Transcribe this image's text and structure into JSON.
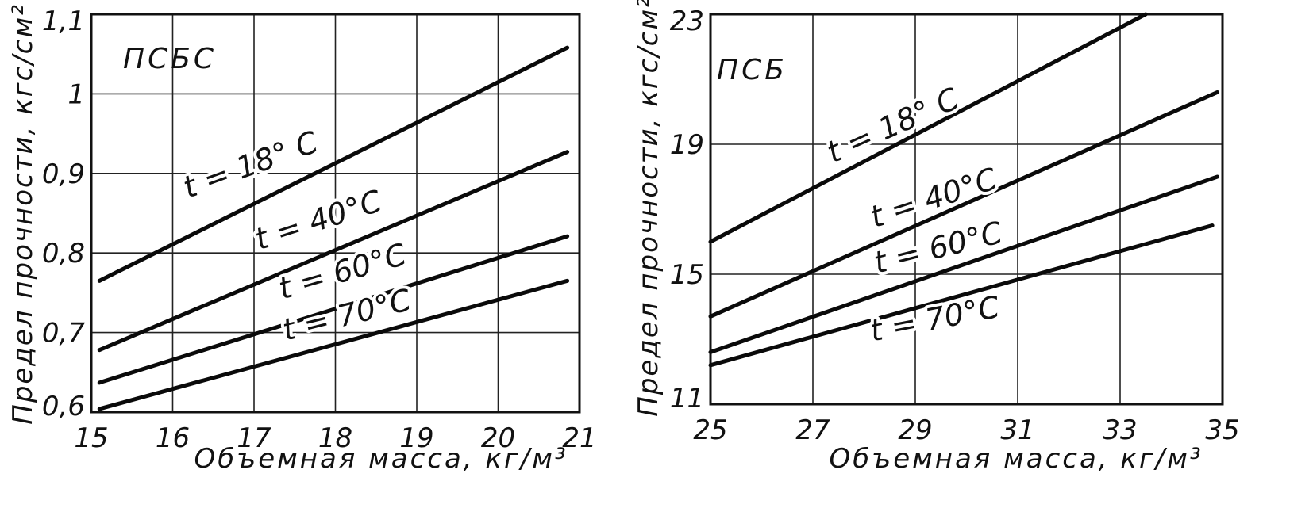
{
  "chart_data": [
    {
      "type": "line",
      "panel_label": "ПСБС",
      "xlabel": "Объемная масса, кг/м³",
      "ylabel": "Предел прочности, кгс/см²",
      "xlim": [
        15,
        21
      ],
      "ylim": [
        0.6,
        1.1
      ],
      "xticks": [
        15,
        16,
        17,
        18,
        19,
        20,
        21
      ],
      "xtick_labels": [
        "15",
        "16",
        "17",
        "18",
        "19",
        "20",
        "21"
      ],
      "yticks": [
        0.6,
        0.7,
        0.8,
        0.9,
        1.0,
        1.1
      ],
      "ytick_labels": [
        "0,6",
        "0,7",
        "0,8",
        "0,9",
        "1",
        "1,1"
      ],
      "grid": true,
      "series": [
        {
          "name": "t = 18° C",
          "x": [
            15.1,
            20.85
          ],
          "y": [
            0.765,
            1.058
          ]
        },
        {
          "name": "t = 40°C",
          "x": [
            15.1,
            20.85
          ],
          "y": [
            0.678,
            0.927
          ]
        },
        {
          "name": "t = 60°C",
          "x": [
            15.1,
            20.85
          ],
          "y": [
            0.637,
            0.821
          ]
        },
        {
          "name": "t = 70°C",
          "x": [
            15.1,
            20.85
          ],
          "y": [
            0.604,
            0.765
          ]
        }
      ]
    },
    {
      "type": "line",
      "panel_label": "ПСБ",
      "xlabel": "Объемная масса, кг/м³",
      "ylabel": "Предел прочности, кгс/см²",
      "xlim": [
        25,
        35
      ],
      "ylim": [
        11,
        23
      ],
      "xticks": [
        25,
        27,
        29,
        31,
        33,
        35
      ],
      "xtick_labels": [
        "25",
        "27",
        "29",
        "31",
        "33",
        "35"
      ],
      "yticks": [
        11,
        15,
        19,
        23
      ],
      "ytick_labels": [
        "11",
        "15",
        "19",
        "23"
      ],
      "grid": true,
      "series": [
        {
          "name": "t = 18° C",
          "x": [
            25.0,
            33.5
          ],
          "y": [
            16.0,
            23.0
          ]
        },
        {
          "name": "t = 40°C",
          "x": [
            25.0,
            34.9
          ],
          "y": [
            13.7,
            20.6
          ]
        },
        {
          "name": "t = 60°C",
          "x": [
            25.0,
            34.9
          ],
          "y": [
            12.6,
            18.0
          ]
        },
        {
          "name": "t = 70°C",
          "x": [
            25.0,
            34.8
          ],
          "y": [
            12.2,
            16.5
          ]
        }
      ]
    }
  ]
}
